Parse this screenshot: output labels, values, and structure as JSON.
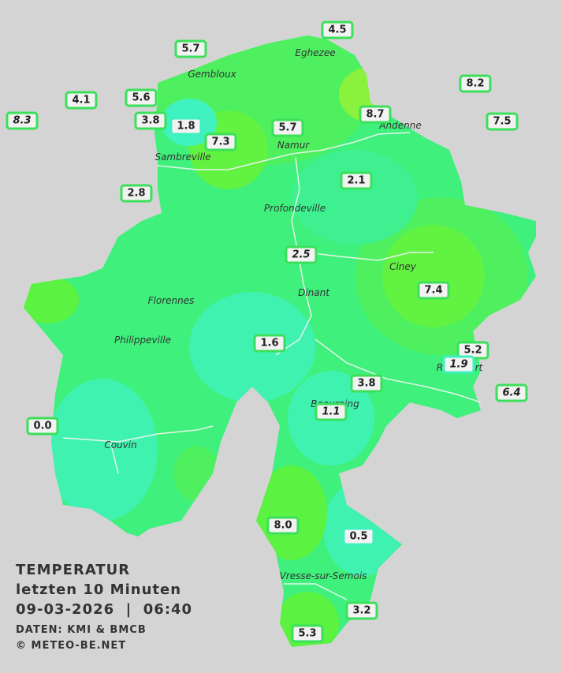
{
  "title": {
    "line1": "TEMPERATUR",
    "line2": "letzten 10 Minuten",
    "line3": "09-03-2026  |  06:40",
    "source": "DATEN: KMI & BMCB",
    "copyright": "© METEO-BE.NET"
  },
  "cities": [
    "Eghezee",
    "Gembloux",
    "Andenne",
    "Namur",
    "Sambreville",
    "Profondeville",
    "Ciney",
    "Dinant",
    "Florennes",
    "Philippeville",
    "Rochefort",
    "Beauraing",
    "Couvin",
    "Vresse-sur-Semois"
  ],
  "stations": [
    "4.5",
    "5.7",
    "8.2",
    "4.1",
    "5.6",
    "8.7",
    "7.5",
    "8.3",
    "3.8",
    "1.8",
    "5.7",
    "7.3",
    "2.1",
    "2.8",
    "2.5",
    "7.4",
    "1.6",
    "5.2",
    "1.9",
    "3.8",
    "6.4",
    "1.1",
    "0.0",
    "8.0",
    "0.5",
    "3.2",
    "5.3"
  ]
}
